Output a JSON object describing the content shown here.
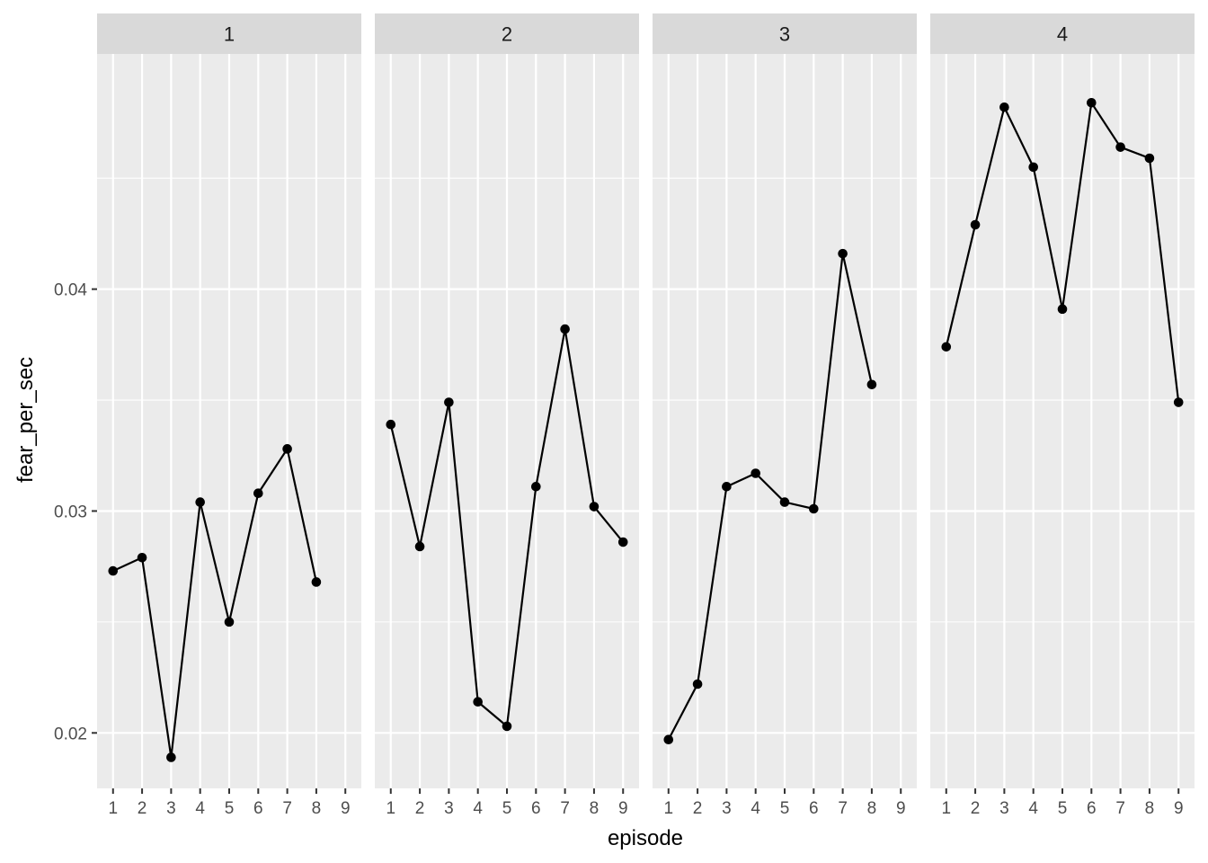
{
  "chart_data": {
    "type": "line",
    "xlabel": "episode",
    "ylabel": "fear_per_sec",
    "x_ticks": [
      "1",
      "2",
      "3",
      "4",
      "5",
      "6",
      "7",
      "8",
      "9"
    ],
    "y_ticks": [
      {
        "value": 0.02,
        "label": "0.02"
      },
      {
        "value": 0.03,
        "label": "0.03"
      },
      {
        "value": 0.04,
        "label": "0.04"
      }
    ],
    "xlim": [
      0.45,
      9.55
    ],
    "ylim": [
      0.0175,
      0.0506
    ],
    "panels": [
      {
        "label": "1",
        "points": [
          {
            "x": 1,
            "y": 0.0273
          },
          {
            "x": 2,
            "y": 0.0279
          },
          {
            "x": 3,
            "y": 0.0189
          },
          {
            "x": 4,
            "y": 0.0304
          },
          {
            "x": 5,
            "y": 0.025
          },
          {
            "x": 6,
            "y": 0.0308
          },
          {
            "x": 7,
            "y": 0.0328
          },
          {
            "x": 8,
            "y": 0.0268
          }
        ]
      },
      {
        "label": "2",
        "points": [
          {
            "x": 1,
            "y": 0.0339
          },
          {
            "x": 2,
            "y": 0.0284
          },
          {
            "x": 3,
            "y": 0.0349
          },
          {
            "x": 4,
            "y": 0.0214
          },
          {
            "x": 5,
            "y": 0.0203
          },
          {
            "x": 6,
            "y": 0.0311
          },
          {
            "x": 7,
            "y": 0.0382
          },
          {
            "x": 8,
            "y": 0.0302
          },
          {
            "x": 9,
            "y": 0.0286
          }
        ]
      },
      {
        "label": "3",
        "points": [
          {
            "x": 1,
            "y": 0.0197
          },
          {
            "x": 2,
            "y": 0.0222
          },
          {
            "x": 3,
            "y": 0.0311
          },
          {
            "x": 4,
            "y": 0.0317
          },
          {
            "x": 5,
            "y": 0.0304
          },
          {
            "x": 6,
            "y": 0.0301
          },
          {
            "x": 7,
            "y": 0.0416
          },
          {
            "x": 8,
            "y": 0.0357
          }
        ]
      },
      {
        "label": "4",
        "points": [
          {
            "x": 1,
            "y": 0.0374
          },
          {
            "x": 2,
            "y": 0.0429
          },
          {
            "x": 3,
            "y": 0.0482
          },
          {
            "x": 4,
            "y": 0.0455
          },
          {
            "x": 5,
            "y": 0.0391
          },
          {
            "x": 6,
            "y": 0.0484
          },
          {
            "x": 7,
            "y": 0.0464
          },
          {
            "x": 8,
            "y": 0.0459
          },
          {
            "x": 9,
            "y": 0.0349
          }
        ]
      }
    ],
    "colors": {
      "panel_bg": "#ebebeb",
      "strip_bg": "#d9d9d9",
      "grid": "#ffffff",
      "line": "#000000",
      "text": "#4d4d4d",
      "title": "#000000"
    },
    "grid": true
  }
}
